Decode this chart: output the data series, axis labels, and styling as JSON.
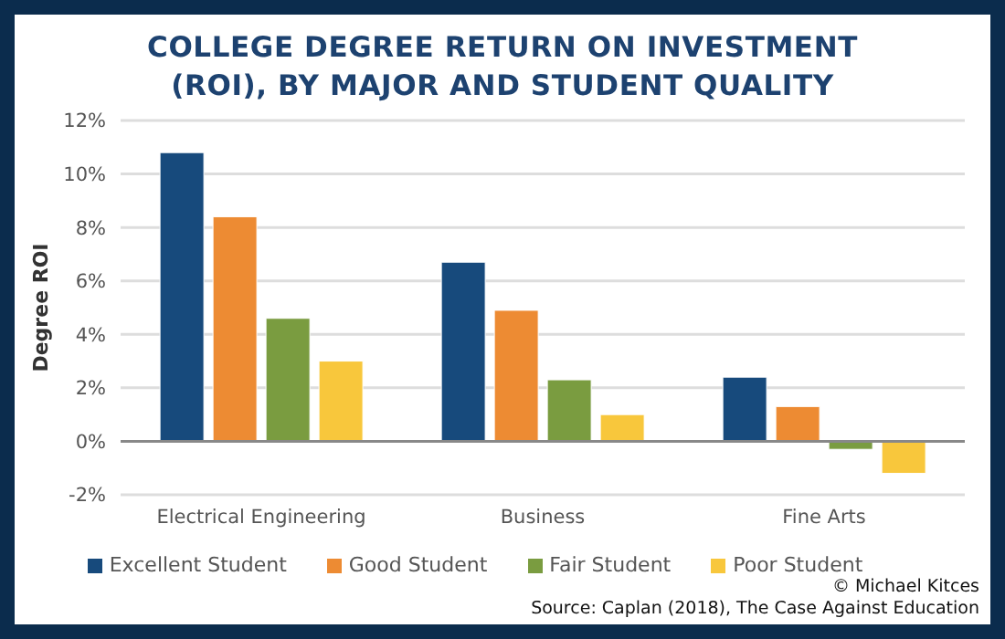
{
  "chart_data": {
    "type": "bar",
    "title": "COLLEGE DEGREE RETURN ON INVESTMENT (ROI), BY MAJOR AND STUDENT QUALITY",
    "ylabel": "Degree ROI",
    "categories": [
      "Electrical Engineering",
      "Business",
      "Fine Arts"
    ],
    "series": [
      {
        "name": "Excellent Student",
        "color": "#174a7c",
        "values": [
          10.8,
          6.7,
          2.4
        ]
      },
      {
        "name": "Good Student",
        "color": "#ed8b33",
        "values": [
          8.4,
          4.9,
          1.3
        ]
      },
      {
        "name": "Fair Student",
        "color": "#7a9c40",
        "values": [
          4.6,
          2.3,
          -0.3
        ]
      },
      {
        "name": "Poor Student",
        "color": "#f8c73c",
        "values": [
          3.0,
          1.0,
          -1.2
        ]
      }
    ],
    "ylim": [
      -2,
      12
    ],
    "yticks": [
      {
        "value": -2,
        "label": "-2%"
      },
      {
        "value": 0,
        "label": "0%"
      },
      {
        "value": 2,
        "label": "2%"
      },
      {
        "value": 4,
        "label": "4%"
      },
      {
        "value": 6,
        "label": "6%"
      },
      {
        "value": 8,
        "label": "8%"
      },
      {
        "value": 10,
        "label": "10%"
      },
      {
        "value": 12,
        "label": "12%"
      }
    ],
    "grid": "y",
    "legend": "bottom",
    "annotations": [
      "© Michael Kitces",
      "Source: Caplan (2018), The Case Against Education"
    ]
  }
}
